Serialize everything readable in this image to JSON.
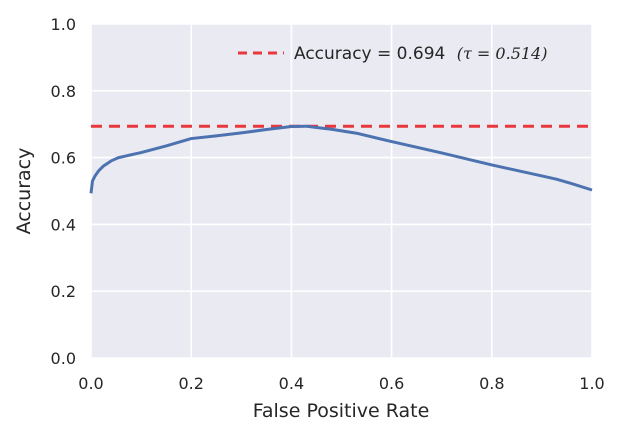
{
  "chart_data": {
    "type": "line",
    "title": "",
    "xlabel": "False Positive Rate",
    "ylabel": "Accuracy",
    "xlim": [
      0.0,
      1.0
    ],
    "ylim": [
      0.0,
      1.0
    ],
    "grid": true,
    "legend_placement": "top-right",
    "x_ticks": [
      "0.0",
      "0.2",
      "0.4",
      "0.6",
      "0.8",
      "1.0"
    ],
    "y_ticks": [
      "0.0",
      "0.2",
      "0.4",
      "0.6",
      "0.8",
      "1.0"
    ],
    "legend": {
      "label": "Accuracy = 0.694",
      "math": "(τ = 0.514)"
    },
    "reference_line": {
      "style": "dashed",
      "y": 0.694,
      "color": "#e8383d"
    },
    "series": [
      {
        "color": "#4c72b0",
        "x": [
          0.0,
          0.003,
          0.008,
          0.015,
          0.025,
          0.04,
          0.055,
          0.1,
          0.15,
          0.2,
          0.25,
          0.3,
          0.35,
          0.4,
          0.43,
          0.45,
          0.48,
          0.53,
          0.6,
          0.7,
          0.8,
          0.9,
          0.93,
          0.96,
          1.0
        ],
        "y": [
          0.493,
          0.53,
          0.545,
          0.56,
          0.575,
          0.59,
          0.6,
          0.615,
          0.635,
          0.657,
          0.665,
          0.674,
          0.684,
          0.693,
          0.694,
          0.69,
          0.685,
          0.673,
          0.648,
          0.614,
          0.578,
          0.545,
          0.535,
          0.522,
          0.503
        ]
      }
    ]
  },
  "colors": {
    "plot_background": "#eaeaf2",
    "grid": "#ffffff",
    "text": "#262626"
  }
}
